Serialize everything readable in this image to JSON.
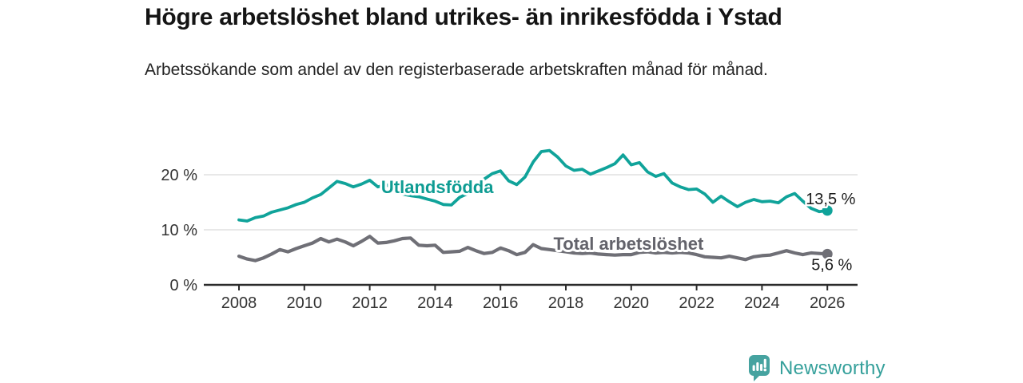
{
  "header": {
    "title": "Högre arbetslöshet bland utrikes- än inrikesfödda i Ystad",
    "subtitle": "Arbetssökande som andel av den registerbaserade arbetskraften månad för månad."
  },
  "chart_data": {
    "type": "line",
    "title": "Högre arbetslöshet bland utrikes- än inrikesfödda i Ystad",
    "subtitle": "Arbetssökande som andel av den registerbaserade arbetskraften månad för månad.",
    "unit": "%",
    "x_start": 2008,
    "x_step_years": 0.25,
    "xlim": [
      2006.9,
      2027
    ],
    "ylim": [
      0,
      26
    ],
    "x_ticks": [
      2008,
      2010,
      2012,
      2014,
      2016,
      2018,
      2020,
      2022,
      2024,
      2026
    ],
    "y_ticks": [
      0,
      10,
      20
    ],
    "y_tick_labels": [
      "0 %",
      "10 %",
      "20 %"
    ],
    "grid": "horizontal",
    "legend_position": "inline-labels",
    "axis_color": "#2b2b2b",
    "grid_color": "#d9d9d9",
    "tick_label_color": "#333333",
    "series": [
      {
        "name": "Total arbetslöshet",
        "color": "#6f6f76",
        "label_color": "#63636b",
        "line_width": 4.2,
        "label_pos": {
          "year": 2017.62,
          "pct": 6.4
        },
        "end_label": "5,6 %",
        "end_value": 5.6,
        "end_label_offset": [
          -20,
          20
        ],
        "values": [
          5.2,
          4.7,
          4.4,
          4.9,
          5.6,
          6.4,
          6.0,
          6.6,
          7.1,
          7.6,
          8.4,
          7.8,
          8.3,
          7.8,
          7.1,
          7.9,
          8.8,
          7.6,
          7.7,
          8.0,
          8.4,
          8.5,
          7.2,
          7.1,
          7.2,
          5.9,
          6.0,
          6.1,
          6.8,
          6.2,
          5.7,
          5.9,
          6.7,
          6.2,
          5.5,
          5.9,
          7.3,
          6.6,
          6.4,
          6.2,
          6.0,
          5.8,
          5.7,
          5.8,
          5.6,
          5.5,
          5.4,
          5.5,
          5.5,
          5.9,
          6.0,
          5.8,
          5.9,
          5.8,
          5.9,
          5.8,
          5.5,
          5.1,
          5.0,
          4.9,
          5.2,
          4.9,
          4.6,
          5.1,
          5.3,
          5.4,
          5.8,
          6.2,
          5.8,
          5.5,
          5.8,
          5.7,
          5.6
        ]
      },
      {
        "name": "Utlandsfödda",
        "color": "#10a39a",
        "label_color": "#0e9c93",
        "line_width": 3.8,
        "label_pos": {
          "year": 2012.35,
          "pct": 16.7
        },
        "end_label": "13,5 %",
        "end_value": 13.5,
        "end_label_offset": [
          -27,
          -8
        ],
        "values": [
          11.8,
          11.6,
          12.2,
          12.5,
          13.2,
          13.6,
          14.0,
          14.6,
          15.0,
          15.8,
          16.4,
          17.6,
          18.8,
          18.4,
          17.8,
          18.3,
          19.0,
          17.8,
          18.2,
          17.5,
          16.5,
          16.2,
          16.0,
          15.6,
          15.2,
          14.6,
          14.5,
          15.9,
          16.6,
          17.8,
          19.2,
          20.2,
          20.7,
          18.9,
          18.2,
          19.6,
          22.3,
          24.2,
          24.4,
          23.2,
          21.6,
          20.8,
          21.0,
          20.1,
          20.7,
          21.3,
          22.0,
          23.6,
          21.8,
          22.2,
          20.5,
          19.7,
          20.2,
          18.5,
          17.8,
          17.3,
          17.4,
          16.5,
          15.0,
          16.1,
          15.1,
          14.2,
          15.0,
          15.5,
          15.1,
          15.2,
          14.9,
          16.0,
          16.6,
          15.2,
          13.9,
          13.3,
          13.5
        ]
      }
    ]
  },
  "branding": {
    "name": "Newsworthy",
    "icon": "bar-chart-speech-bubble-icon",
    "icon_color": "#46a3a0",
    "text_color": "#35a09b"
  }
}
